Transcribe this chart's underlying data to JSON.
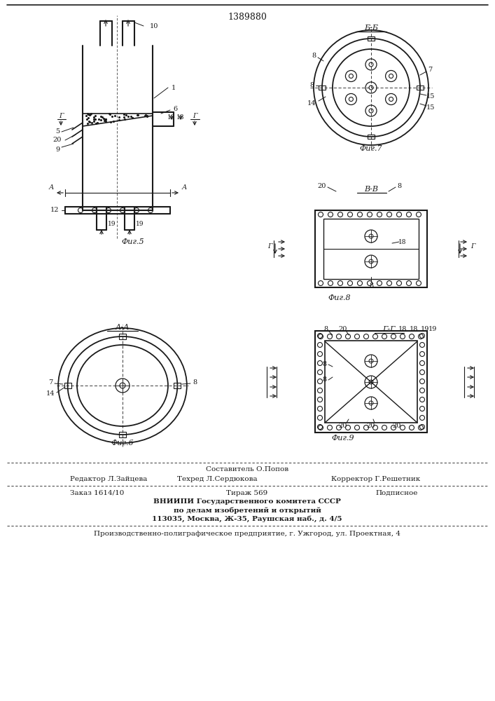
{
  "patent_number": "1389880",
  "bg_color": "#ffffff",
  "line_color": "#1a1a1a",
  "fig_width": 7.07,
  "fig_height": 10.0,
  "footer_sestavitel": "Составитель О.Попов",
  "footer_tekhred": "Техред Л.Сердюкова",
  "footer_editor": "Редактор Л.Зайцева",
  "footer_korrektor": "Корректор Г.Решетник",
  "footer_zakaz": "Заказ 1614/10",
  "footer_tirazh": "Тираж 569",
  "footer_podpisnoe": "Подписное",
  "footer_vniip1": "ВНИИПИ Государственного комитета СССР",
  "footer_vniip2": "по делам изобретений и открытий",
  "footer_vniip3": "113035, Москва, Ж-35, Раушская наб., д. 4/5",
  "footer_bottom": "Производственно-полиграфическое предприятие, г. Ужгород, ул. Проектная, 4"
}
